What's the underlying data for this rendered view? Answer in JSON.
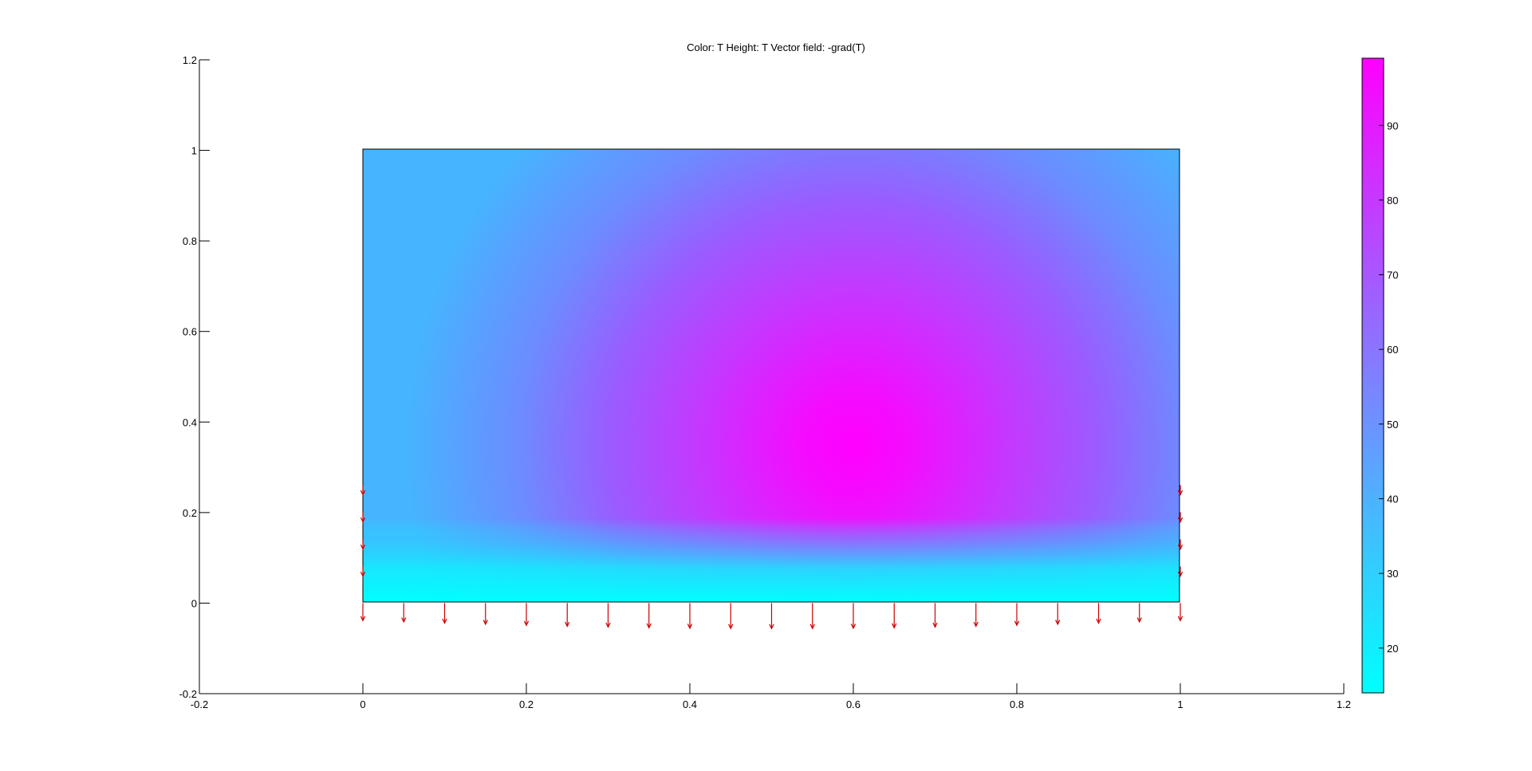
{
  "chart_data": {
    "type": "heatmap",
    "title": "Color: T  Height: T  Vector field: -grad(T)",
    "xlabel": "",
    "ylabel": "",
    "xlim": [
      -0.2,
      1.2
    ],
    "ylim": [
      -0.2,
      1.2
    ],
    "x_ticks": [
      "-0.2",
      "0",
      "0.2",
      "0.4",
      "0.6",
      "0.8",
      "1",
      "1.2"
    ],
    "y_ticks": [
      "1.2",
      "1",
      "0.8",
      "0.6",
      "0.4",
      "0.2",
      "0",
      "-0.2"
    ],
    "domain": {
      "x": [
        0,
        1
      ],
      "y": [
        0,
        1
      ]
    },
    "field_peak": {
      "x": 0.58,
      "y": 0.38,
      "value": 99
    },
    "colorbar": {
      "range": [
        14,
        99
      ],
      "ticks": [
        "20",
        "30",
        "40",
        "50",
        "60",
        "70",
        "80",
        "90"
      ],
      "colors": [
        "#00ffff",
        "#ff00ff"
      ]
    },
    "arrow_color": "#cc0000",
    "bottom_arrows_x": [
      0,
      0.05,
      0.1,
      0.15,
      0.2,
      0.25,
      0.3,
      0.35,
      0.4,
      0.45,
      0.5,
      0.55,
      0.6,
      0.65,
      0.7,
      0.75,
      0.8,
      0.85,
      0.9,
      0.95,
      1.0
    ],
    "side_arrows_y": [
      0.07,
      0.13,
      0.19,
      0.25
    ]
  }
}
